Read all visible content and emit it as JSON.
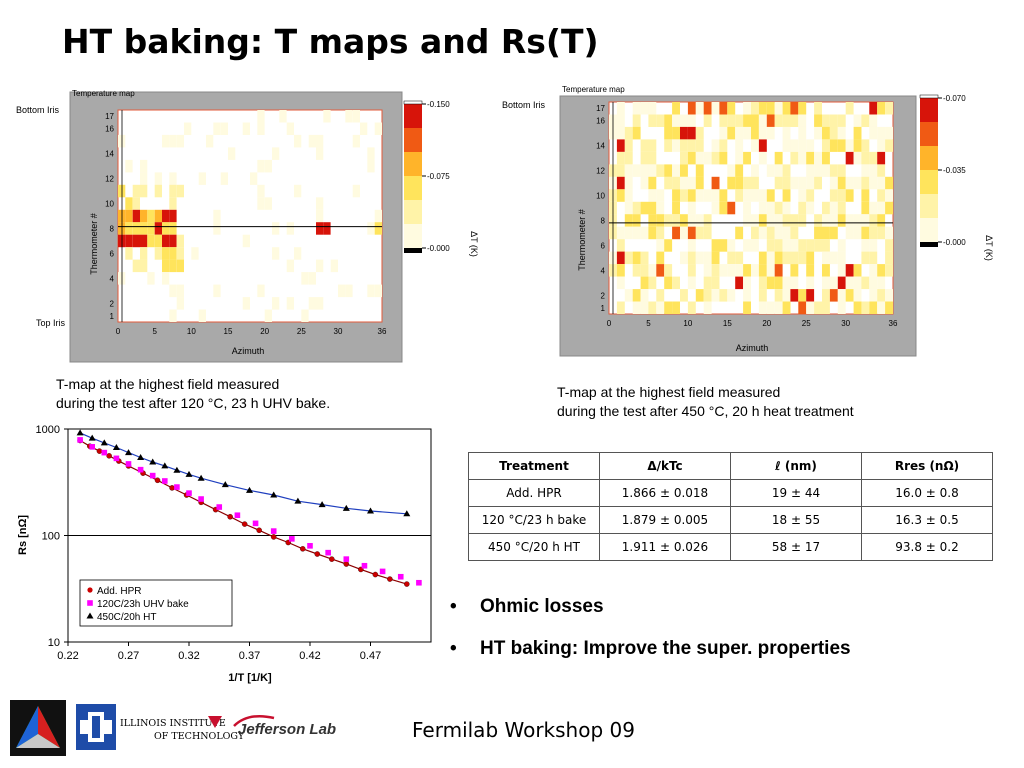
{
  "title": "HT baking: T maps and Rs(T)",
  "tmap_left": {
    "panel_title": "Temperature map",
    "bottom_label": "Bottom Iris",
    "top_label": "Top Iris",
    "y_axis_label": "Thermometer #",
    "x_axis_label": "Azimuth",
    "y_ticks": [
      "17",
      "16",
      "14",
      "12",
      "10",
      "8",
      "6",
      "4",
      "2",
      "1"
    ],
    "x_ticks": [
      "0",
      "5",
      "10",
      "15",
      "20",
      "25",
      "30",
      "36"
    ],
    "scale_labels": [
      "0.150",
      "0.075",
      "0.000"
    ],
    "scale_title": "ΔT (K)",
    "caption_line1": "T-map at the highest field measured",
    "caption_line2": "during the test after 120 °C, 23 h UHV bake."
  },
  "tmap_right": {
    "panel_title": "Temperature map",
    "bottom_label": "Bottom Iris",
    "y_axis_label": "Thermometer #",
    "x_axis_label": "Azimuth",
    "y_ticks": [
      "17",
      "16",
      "14",
      "12",
      "10",
      "8",
      "6",
      "4",
      "2",
      "1"
    ],
    "x_ticks": [
      "0",
      "5",
      "10",
      "15",
      "20",
      "25",
      "30",
      "36"
    ],
    "scale_labels": [
      "0.070",
      "0.035",
      "0.000"
    ],
    "scale_title": "ΔT (K)",
    "caption_line1": "T-map at the highest field measured",
    "caption_line2": "during the test after 450 °C, 20 h heat treatment"
  },
  "table": {
    "headers": [
      "Treatment",
      "Δ/kTc",
      "ℓ (nm)",
      "Rres (nΩ)"
    ],
    "rows": [
      [
        "Add. HPR",
        "1.866 ± 0.018",
        "19 ± 44",
        "16.0 ± 0.8"
      ],
      [
        "120 °C/23 h bake",
        "1.879 ± 0.005",
        "18 ± 55",
        "16.3 ± 0.5"
      ],
      [
        "450 °C/20 h HT",
        "1.911 ± 0.026",
        "58 ± 17",
        "93.8 ± 0.2"
      ]
    ]
  },
  "bullets": {
    "symbol": "•",
    "items": [
      "Ohmic losses",
      "HT baking: Improve the super. properties"
    ]
  },
  "footer": "Fermilab Workshop 09",
  "logos": {
    "iit_line1": "ILLINOIS INSTITUTE",
    "iit_line2": "OF TECHNOLOGY",
    "jlab": "Jefferson Lab"
  },
  "chart_data": {
    "type": "scatter",
    "xlabel": "1/T [1/K]",
    "ylabel": "Rs [nΩ]",
    "y_scale": "log",
    "xlim": [
      0.22,
      0.52
    ],
    "ylim": [
      10,
      1000
    ],
    "x_ticks": [
      "0.22",
      "0.27",
      "0.32",
      "0.37",
      "0.42",
      "0.47"
    ],
    "y_ticks": [
      "1000",
      "100",
      "10"
    ],
    "legend_position": "bottom-left",
    "series": [
      {
        "name": "Add. HPR",
        "marker": "circle",
        "color": "#cc0000",
        "x": [
          0.23,
          0.238,
          0.246,
          0.254,
          0.262,
          0.27,
          0.282,
          0.294,
          0.306,
          0.318,
          0.33,
          0.342,
          0.354,
          0.366,
          0.378,
          0.39,
          0.402,
          0.414,
          0.426,
          0.438,
          0.45,
          0.462,
          0.474,
          0.486,
          0.5
        ],
        "y": [
          780,
          690,
          620,
          560,
          500,
          450,
          385,
          330,
          280,
          240,
          205,
          175,
          150,
          128,
          112,
          97,
          86,
          75,
          67,
          60,
          54,
          48,
          43,
          39,
          35
        ],
        "fit_color": "#8b0000"
      },
      {
        "name": "120C/23h UHV bake",
        "marker": "square",
        "color": "#ff00ff",
        "x": [
          0.23,
          0.24,
          0.25,
          0.26,
          0.27,
          0.28,
          0.29,
          0.3,
          0.31,
          0.32,
          0.33,
          0.345,
          0.36,
          0.375,
          0.39,
          0.405,
          0.42,
          0.435,
          0.45,
          0.465,
          0.48,
          0.495,
          0.51
        ],
        "y": [
          790,
          680,
          600,
          530,
          470,
          415,
          365,
          325,
          285,
          250,
          220,
          185,
          155,
          130,
          110,
          93,
          80,
          69,
          60,
          52,
          46,
          41,
          36
        ]
      },
      {
        "name": "450C/20h HT",
        "marker": "triangle",
        "color": "#000000",
        "x": [
          0.23,
          0.24,
          0.25,
          0.26,
          0.27,
          0.28,
          0.29,
          0.3,
          0.31,
          0.32,
          0.33,
          0.35,
          0.37,
          0.39,
          0.41,
          0.43,
          0.45,
          0.47,
          0.5
        ],
        "y": [
          920,
          820,
          740,
          670,
          600,
          540,
          490,
          450,
          410,
          375,
          345,
          300,
          265,
          240,
          210,
          195,
          180,
          170,
          160
        ],
        "fit_color": "#1f3fbf"
      }
    ]
  }
}
